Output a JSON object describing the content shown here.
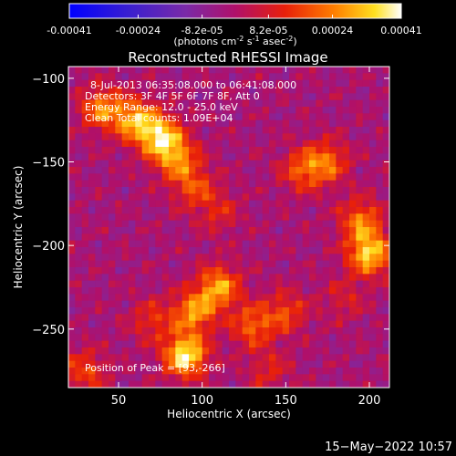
{
  "colorbar": {
    "tick_labels": [
      "-0.00041",
      "-0.00024",
      "-8.2e-05",
      "8.2e-05",
      "0.00024",
      "0.00041"
    ],
    "tick_values": [
      -0.00041,
      -0.00024,
      -8.2e-05,
      8.2e-05,
      0.00024,
      0.00041
    ],
    "range": [
      -0.00041,
      0.00041
    ],
    "units_label": "(photons cm",
    "units_exp1": "-2",
    "units_mid1": " s",
    "units_exp2": "-1",
    "units_mid2": " asec",
    "units_exp3": "-2",
    "units_close": ")"
  },
  "chart_data": {
    "type": "heatmap",
    "title": "Reconstructed RHESSI Image",
    "xlabel": "Heliocentric X (arcsec)",
    "ylabel": "Heliocentric Y (arcsec)",
    "xlim": [
      20,
      212
    ],
    "ylim": [
      -285,
      -93
    ],
    "x_ticks": [
      50,
      100,
      150,
      200
    ],
    "y_ticks": [
      -100,
      -150,
      -200,
      -250
    ],
    "x_tick_labels": [
      "50",
      "100",
      "150",
      "200"
    ],
    "y_tick_labels": [
      "−100",
      "−150",
      "−200",
      "−250"
    ],
    "colormap": "rhessi: blue-purple-red-orange-yellow-white",
    "background_level": -2e-05,
    "sources": [
      {
        "x": 40,
        "y": -118,
        "value": 0.00026
      },
      {
        "x": 60,
        "y": -125,
        "value": 0.0003
      },
      {
        "x": 75,
        "y": -135,
        "value": 0.00035
      },
      {
        "x": 85,
        "y": -148,
        "value": 0.00025
      },
      {
        "x": 95,
        "y": -165,
        "value": 0.00018
      },
      {
        "x": 110,
        "y": -180,
        "value": 0.00012
      },
      {
        "x": 160,
        "y": -155,
        "value": 0.0002
      },
      {
        "x": 175,
        "y": -150,
        "value": 0.00022
      },
      {
        "x": 195,
        "y": -185,
        "value": 0.00024
      },
      {
        "x": 200,
        "y": -205,
        "value": 0.00036
      },
      {
        "x": 185,
        "y": -232,
        "value": 0.0001
      },
      {
        "x": 110,
        "y": -225,
        "value": 0.0003
      },
      {
        "x": 95,
        "y": -240,
        "value": 0.00028
      },
      {
        "x": 130,
        "y": -248,
        "value": 0.00022
      },
      {
        "x": 150,
        "y": -240,
        "value": 0.00018
      },
      {
        "x": 70,
        "y": -245,
        "value": 0.00015
      },
      {
        "x": 90,
        "y": -266,
        "value": 0.00041
      },
      {
        "x": 30,
        "y": -275,
        "value": 0.00018
      },
      {
        "x": 140,
        "y": -275,
        "value": 0.00012
      }
    ],
    "info_lines": [
      "8-Jul-2013 06:35:08.000 to 06:41:08.000",
      "Detectors: 3F 4F 5F 6F 7F 8F, Att 0",
      "Energy Range: 12.0 - 25.0 keV",
      "Clean     Total counts: 1.09E+04"
    ],
    "peak_label": "Position of Peak = [93,-266]"
  },
  "timestamp": "15−May−2022 10:57"
}
